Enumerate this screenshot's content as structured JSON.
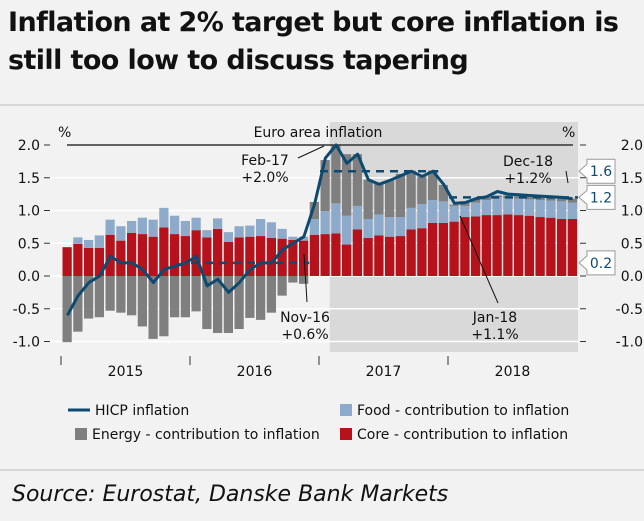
{
  "title": "Inflation at 2% target but core inflation is still too low to discuss tapering",
  "source": "Source: Eurostat, Danske Bank Markets",
  "chart_data": {
    "type": "bar",
    "stacked": true,
    "title": "Euro area inflation",
    "ylabel_left": "%",
    "ylabel_right": "%",
    "ylim": [
      -1.0,
      2.0
    ],
    "yticks": [
      "2.0",
      "1.5",
      "1.0",
      "0.5",
      "0.0",
      "-0.5",
      "-1.0"
    ],
    "ytick_values": [
      2.0,
      1.5,
      1.0,
      0.5,
      0.0,
      -0.5,
      -1.0
    ],
    "year_labels": [
      "2015",
      "2016",
      "2017",
      "2018"
    ],
    "grid": true,
    "shaded_period": [
      "Feb-17",
      "Dec-18"
    ],
    "months": [
      "Jan-15",
      "Feb-15",
      "Mar-15",
      "Apr-15",
      "May-15",
      "Jun-15",
      "Jul-15",
      "Aug-15",
      "Sep-15",
      "Oct-15",
      "Nov-15",
      "Dec-15",
      "Jan-16",
      "Feb-16",
      "Mar-16",
      "Apr-16",
      "May-16",
      "Jun-16",
      "Jul-16",
      "Aug-16",
      "Sep-16",
      "Oct-16",
      "Nov-16",
      "Dec-16",
      "Jan-17",
      "Feb-17",
      "Mar-17",
      "Apr-17",
      "May-17",
      "Jun-17",
      "Jul-17",
      "Aug-17",
      "Sep-17",
      "Oct-17",
      "Nov-17",
      "Dec-17",
      "Jan-18",
      "Feb-18",
      "Mar-18",
      "Apr-18",
      "May-18",
      "Jun-18",
      "Jul-18",
      "Aug-18",
      "Sep-18",
      "Oct-18",
      "Nov-18",
      "Dec-18"
    ],
    "series": [
      {
        "name": "Core - contribution to inflation",
        "kind": "bar",
        "color": "#b5121b",
        "values": [
          0.44,
          0.49,
          0.43,
          0.43,
          0.63,
          0.54,
          0.66,
          0.64,
          0.6,
          0.74,
          0.64,
          0.61,
          0.7,
          0.59,
          0.72,
          0.52,
          0.59,
          0.6,
          0.61,
          0.58,
          0.57,
          0.55,
          0.54,
          0.63,
          0.64,
          0.65,
          0.48,
          0.71,
          0.58,
          0.62,
          0.6,
          0.61,
          0.71,
          0.73,
          0.81,
          0.81,
          0.83,
          0.9,
          0.91,
          0.93,
          0.93,
          0.94,
          0.93,
          0.92,
          0.9,
          0.89,
          0.87,
          0.87
        ]
      },
      {
        "name": "Food - contribution to inflation",
        "kind": "bar",
        "color": "#8eaacb",
        "values": [
          0.0,
          0.1,
          0.12,
          0.19,
          0.23,
          0.22,
          0.18,
          0.25,
          0.26,
          0.3,
          0.28,
          0.23,
          0.19,
          0.11,
          0.16,
          0.15,
          0.17,
          0.17,
          0.26,
          0.24,
          0.15,
          0.05,
          0.06,
          0.24,
          0.35,
          0.46,
          0.44,
          0.36,
          0.29,
          0.32,
          0.3,
          0.29,
          0.33,
          0.37,
          0.35,
          0.33,
          0.24,
          0.17,
          0.21,
          0.23,
          0.27,
          0.25,
          0.25,
          0.25,
          0.26,
          0.26,
          0.27,
          0.25
        ]
      },
      {
        "name": "Energy - contribution to inflation",
        "kind": "bar",
        "color": "#7f7f7f",
        "values": [
          -1.01,
          -0.85,
          -0.65,
          -0.63,
          -0.53,
          -0.56,
          -0.6,
          -0.77,
          -0.96,
          -0.92,
          -0.63,
          -0.63,
          -0.54,
          -0.81,
          -0.87,
          -0.87,
          -0.81,
          -0.64,
          -0.67,
          -0.56,
          -0.3,
          -0.1,
          -0.12,
          0.26,
          0.78,
          0.89,
          0.94,
          0.79,
          0.6,
          0.48,
          0.56,
          0.66,
          0.57,
          0.42,
          0.45,
          0.25,
          0.02,
          0.07,
          0.06,
          0.05,
          0.03,
          0.04,
          0.04,
          0.04,
          0.04,
          0.04,
          0.05,
          0.06
        ]
      },
      {
        "name": "HICP inflation",
        "kind": "line",
        "color": "#0d4a70",
        "values": [
          -0.6,
          -0.3,
          -0.1,
          0.0,
          0.3,
          0.2,
          0.2,
          0.1,
          -0.1,
          0.1,
          0.15,
          0.2,
          0.3,
          -0.15,
          -0.05,
          -0.25,
          -0.1,
          0.1,
          0.2,
          0.2,
          0.4,
          0.5,
          0.6,
          1.1,
          1.8,
          2.0,
          1.72,
          1.86,
          1.47,
          1.4,
          1.46,
          1.53,
          1.6,
          1.52,
          1.6,
          1.4,
          1.11,
          1.12,
          1.18,
          1.21,
          1.29,
          1.25,
          1.24,
          1.23,
          1.22,
          1.21,
          1.2,
          1.18
        ]
      }
    ],
    "averages": [
      {
        "value": 0.2,
        "label": "0.2",
        "from": "Jan-16",
        "to": "Nov-16"
      },
      {
        "value": 1.6,
        "label": "1.6",
        "from": "Jan-17",
        "to": "Nov-17"
      },
      {
        "value": 1.2,
        "label": "1.2",
        "from": "Jan-18",
        "to": "Dec-18"
      }
    ],
    "annotations": [
      {
        "month": "Feb-17",
        "line1": "Feb-17",
        "line2": "+2.0%"
      },
      {
        "month": "Nov-16",
        "line1": "Nov-16",
        "line2": "+0.6%"
      },
      {
        "month": "Jan-18",
        "line1": "Jan-18",
        "line2": "+1.1%"
      },
      {
        "month": "Dec-18",
        "line1": "Dec-18",
        "line2": "+1.2%"
      }
    ],
    "legend": {
      "placement": "bottom",
      "items": [
        {
          "label": "HICP inflation",
          "color": "#0d4a70",
          "kind": "line"
        },
        {
          "label": "Food - contribution to inflation",
          "color": "#8eaacb",
          "kind": "box"
        },
        {
          "label": "Energy - contribution to inflation",
          "color": "#7f7f7f",
          "kind": "box"
        },
        {
          "label": "Core - contribution to inflation",
          "color": "#b5121b",
          "kind": "box"
        }
      ]
    }
  }
}
